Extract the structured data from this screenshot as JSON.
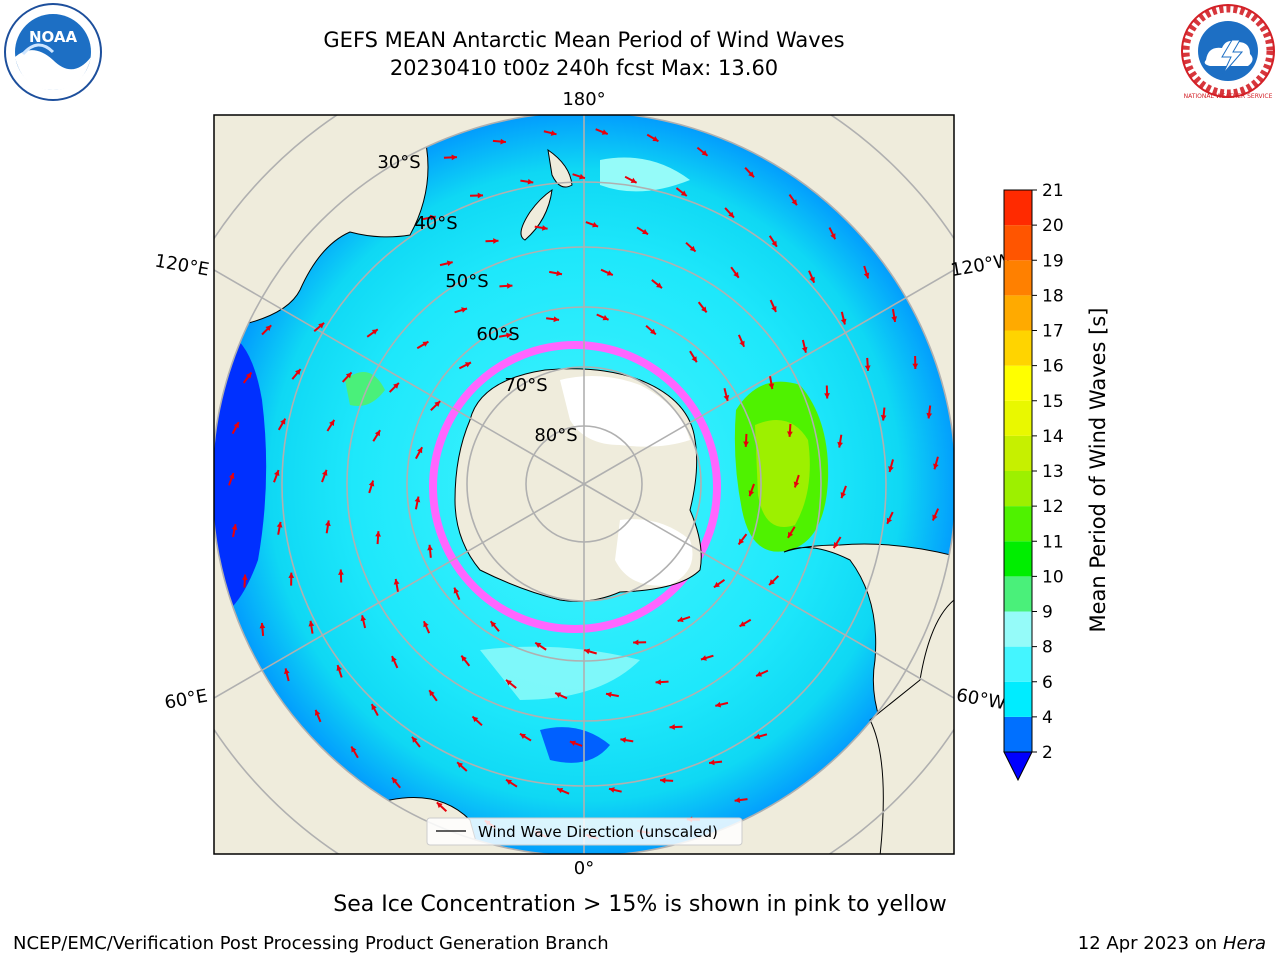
{
  "title": "GEFS MEAN Antarctic Mean Period of Wind Waves",
  "subtitle": "20230410 t00z 240h fcst   Max: 13.60",
  "map": {
    "projection": "south-polar-stereographic",
    "longitude_labels": [
      "180°",
      "120°E",
      "120°W",
      "60°E",
      "60°W",
      "0°"
    ],
    "latitude_labels": [
      "30°S",
      "40°S",
      "50°S",
      "60°S",
      "70°S",
      "80°S"
    ],
    "legend_label": "Wind Wave Direction (unscaled)",
    "arrow_color": "#e8000b"
  },
  "colorbar": {
    "label": "Mean Period of Wind Waves [s]",
    "ticks": [
      "2",
      "4",
      "6",
      "8",
      "9",
      "10",
      "11",
      "12",
      "13",
      "14",
      "15",
      "16",
      "17",
      "18",
      "19",
      "20",
      "21"
    ],
    "colors": [
      "#0070ff",
      "#00ecff",
      "#44f5ff",
      "#95fbf9",
      "#4af07a",
      "#00ee00",
      "#4ff200",
      "#9df000",
      "#c6f000",
      "#e9f800",
      "#ffff00",
      "#ffd400",
      "#ffaa00",
      "#ff8000",
      "#ff5500",
      "#ff2a00"
    ],
    "under_color": "#0000ff"
  },
  "footer": {
    "note": "Sea Ice Concentration > 15% is shown in pink to yellow",
    "left": "NCEP/EMC/Verification Post Processing Product Generation Branch",
    "right_date": "12 Apr 2023 on ",
    "right_host": "Hera"
  },
  "logos": {
    "left": "NOAA",
    "right": "NATIONAL WEATHER SERVICE"
  }
}
